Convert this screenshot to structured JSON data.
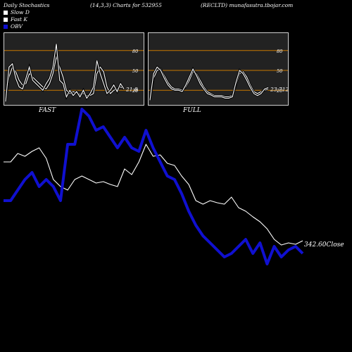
{
  "header": {
    "left": "Daily Stochastics",
    "mid": "(14,3,3) Charts for 532955",
    "right": "(RECLTD) munafasutra.tbojar.com"
  },
  "legend": [
    {
      "label": "Slow  D",
      "color": "#ffffff"
    },
    {
      "label": "Fast  K",
      "color": "#ffffff"
    },
    {
      "label": "OBV",
      "color": "#1010d0"
    }
  ],
  "panels": [
    {
      "title": "FAST",
      "last_value": "21.8"
    },
    {
      "title": "FULL",
      "last_value": "23.7120"
    }
  ],
  "close_label": "342.60Close",
  "chart_data": [
    {
      "type": "line",
      "title": "FAST",
      "ylim": [
        0,
        100
      ],
      "ticks": [
        80,
        50,
        20
      ],
      "guide_color": "#c87800",
      "series": [
        {
          "name": "Slow  D",
          "values": [
            5,
            40,
            55,
            48,
            35,
            28,
            30,
            45,
            40,
            35,
            30,
            25,
            22,
            30,
            45,
            70,
            55,
            40,
            20,
            15,
            18,
            16,
            14,
            15,
            12,
            12,
            15,
            45,
            55,
            48,
            25,
            15,
            20,
            22,
            25,
            22
          ]
        },
        {
          "name": "Fast  K",
          "values": [
            3,
            55,
            60,
            38,
            25,
            22,
            38,
            55,
            35,
            30,
            25,
            20,
            30,
            38,
            55,
            90,
            35,
            30,
            10,
            20,
            12,
            18,
            10,
            20,
            8,
            15,
            25,
            65,
            45,
            30,
            15,
            20,
            28,
            18,
            30,
            22
          ]
        }
      ]
    },
    {
      "type": "line",
      "title": "FULL",
      "ylim": [
        0,
        100
      ],
      "ticks": [
        80,
        50,
        20
      ],
      "guide_color": "#c87800",
      "series": [
        {
          "name": "Slow  D",
          "values": [
            5,
            38,
            50,
            52,
            42,
            32,
            25,
            22,
            22,
            20,
            25,
            35,
            48,
            45,
            35,
            25,
            18,
            15,
            12,
            12,
            12,
            10,
            10,
            12,
            28,
            45,
            48,
            40,
            28,
            18,
            15,
            18,
            20,
            22
          ]
        },
        {
          "name": "Fast  K",
          "values": [
            5,
            45,
            55,
            50,
            38,
            28,
            22,
            20,
            20,
            18,
            28,
            40,
            52,
            42,
            30,
            22,
            15,
            13,
            10,
            10,
            10,
            8,
            8,
            10,
            32,
            50,
            45,
            35,
            24,
            15,
            12,
            15,
            22,
            24
          ]
        }
      ]
    },
    {
      "type": "line",
      "title": "",
      "series": [
        {
          "name": "Close",
          "color": "#ffffff",
          "values": [
            230,
            230,
            218,
            222,
            215,
            210,
            225,
            255,
            265,
            270,
            255,
            250,
            255,
            260,
            258,
            262,
            265,
            240,
            248,
            230,
            205,
            222,
            220,
            232,
            235,
            250,
            262,
            285,
            290,
            285,
            288,
            290,
            280,
            295,
            300,
            308,
            315,
            325,
            340,
            348,
            345,
            347,
            342
          ]
        },
        {
          "name": "OBV",
          "color": "#1010d0",
          "values": [
            285,
            285,
            270,
            255,
            245,
            265,
            255,
            265,
            285,
            205,
            205,
            155,
            165,
            185,
            180,
            195,
            210,
            195,
            210,
            215,
            185,
            210,
            230,
            250,
            255,
            275,
            300,
            320,
            335,
            345,
            355,
            365,
            360,
            350,
            340,
            360,
            345,
            375,
            350,
            365,
            355,
            350,
            360
          ]
        }
      ]
    }
  ]
}
